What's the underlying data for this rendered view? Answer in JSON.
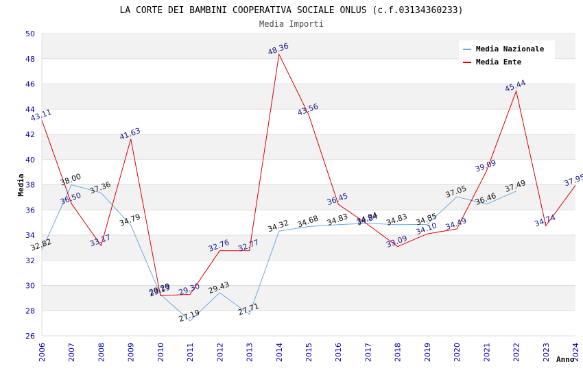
{
  "chart_data": {
    "type": "line",
    "title": "LA CORTE DEI BAMBINI COOPERATIVA SOCIALE ONLUS (c.f.03134360233)",
    "subtitle": "Media Importi",
    "xlabel": "Anno",
    "ylabel": "Media",
    "ylim": [
      26,
      50
    ],
    "y_ticks": [
      26,
      28,
      30,
      32,
      34,
      36,
      38,
      40,
      42,
      44,
      46,
      48,
      50
    ],
    "x": [
      "2006",
      "2007",
      "2008",
      "2009",
      "2010",
      "2011",
      "2012",
      "2013",
      "2014",
      "2015",
      "2016",
      "2017",
      "2018",
      "2019",
      "2020",
      "2021",
      "2022",
      "2023",
      "2024"
    ],
    "legend_position": "top-right",
    "grid": true,
    "series": [
      {
        "name": "Media Nazionale",
        "color": "#6aa8e8",
        "values": [
          32.82,
          38.0,
          37.36,
          34.79,
          29.29,
          27.19,
          29.43,
          27.71,
          34.32,
          34.68,
          34.83,
          34.94,
          34.83,
          34.85,
          37.05,
          36.46,
          37.49,
          null,
          null
        ],
        "labels": [
          "32.82",
          "38.00",
          "37.36",
          "34.79",
          "29.29",
          "27.19",
          "29.43",
          "27.71",
          "34.32",
          "34.68",
          "34.83",
          "34.94",
          "34.83",
          "34.85",
          "37.05",
          "36.46",
          "37.49",
          "",
          ""
        ]
      },
      {
        "name": "Media Ente",
        "color": "#dd0000",
        "values": [
          43.11,
          36.5,
          33.17,
          41.63,
          29.19,
          29.3,
          32.76,
          32.77,
          48.36,
          43.56,
          36.45,
          34.84,
          33.09,
          34.1,
          34.49,
          39.09,
          45.44,
          34.74,
          37.95
        ],
        "labels": [
          "43.11",
          "36.50",
          "33.17",
          "41.63",
          "29.19",
          "29.30",
          "32.76",
          "32.77",
          "48.36",
          "43.56",
          "36.45",
          "34.84",
          "33.09",
          "34.10",
          "34.49",
          "39.09",
          "45.44",
          "34.74",
          "37.95"
        ]
      }
    ]
  }
}
